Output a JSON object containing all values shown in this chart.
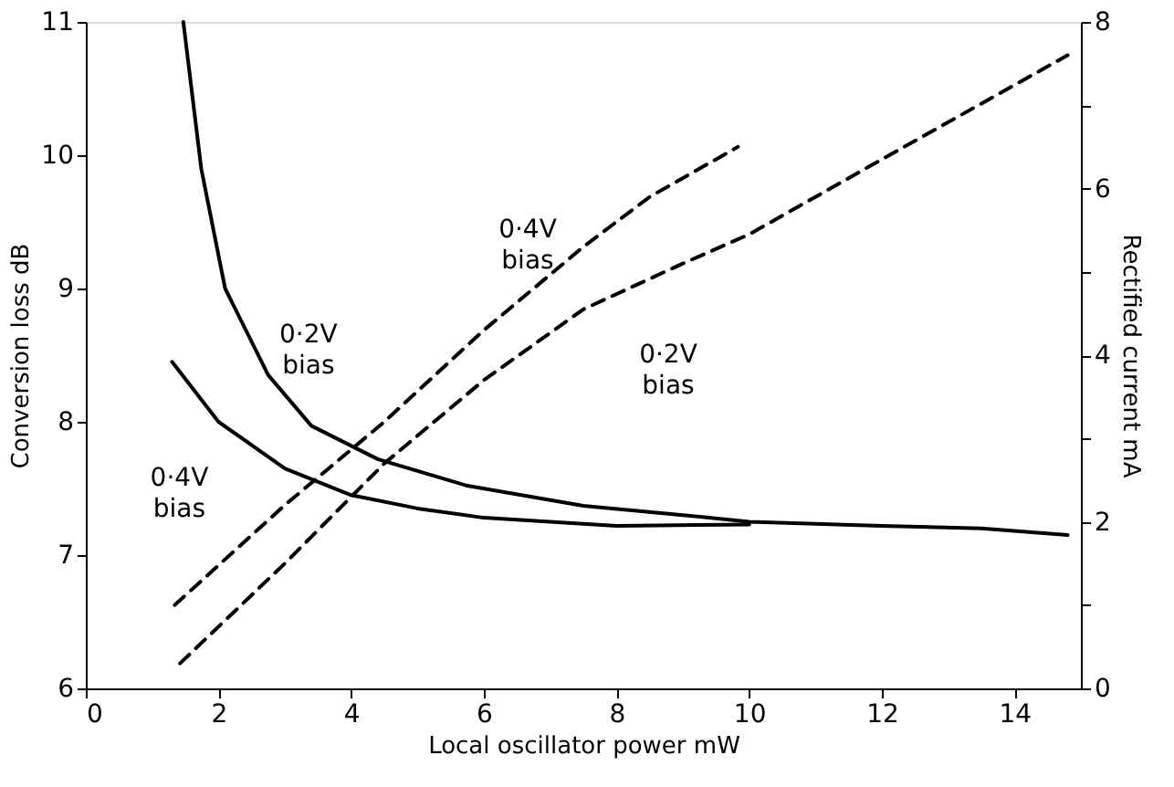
{
  "chart_data": {
    "type": "line",
    "xlabel": "Local oscillator power  mW",
    "ylabel": "Conversion loss  dB",
    "y2label": "Rectified current  mA",
    "xlim": [
      0,
      15
    ],
    "xticks": [
      0,
      2,
      4,
      6,
      8,
      10,
      12,
      14
    ],
    "ylim": [
      6,
      11
    ],
    "yticks": [
      6,
      7,
      8,
      9,
      10,
      11
    ],
    "y2lim": [
      0,
      8
    ],
    "y2ticks": [
      0,
      {
        "value": 1,
        "label": null
      },
      2,
      {
        "value": 3,
        "label": null
      },
      4,
      {
        "value": 5,
        "label": null
      },
      6,
      {
        "value": 7,
        "label": null
      },
      8
    ],
    "grid": false,
    "marker": "none",
    "series": [
      {
        "name": "0·2V bias",
        "color": "#000000",
        "line_style": "solid",
        "x": [
          1.47,
          1.74,
          2.1,
          2.75,
          3.4,
          4.4,
          5.75,
          7.5,
          9,
          10,
          12,
          13.5,
          14.8
        ],
        "values": [
          11,
          9.9,
          9.0,
          8.35,
          7.97,
          7.72,
          7.52,
          7.37,
          7.3,
          7.25,
          7.22,
          7.2,
          7.15
        ]
      },
      {
        "name": "0·4V bias",
        "color": "#000000",
        "line_style": "solid",
        "x": [
          1.3,
          2,
          3,
          4,
          5,
          6,
          8,
          10
        ],
        "values": [
          8.45,
          8.0,
          7.65,
          7.45,
          7.35,
          7.28,
          7.22,
          7.23
        ]
      },
      {
        "name": "0·4V bias",
        "color": "#000000",
        "line_style": "dashed",
        "axis": "y2",
        "x": [
          1.34,
          3,
          4.5,
          6,
          7.5,
          8.5,
          9.83
        ],
        "values": [
          1.0,
          2.2,
          3.2,
          4.3,
          5.3,
          5.9,
          6.5
        ]
      },
      {
        "name": "0·2V bias",
        "color": "#000000",
        "line_style": "dashed",
        "axis": "y2",
        "x": [
          1.42,
          3,
          4.5,
          6,
          7.5,
          9,
          10,
          12,
          14.8
        ],
        "values": [
          0.3,
          1.5,
          2.7,
          3.7,
          4.55,
          5.1,
          5.45,
          6.35,
          7.6
        ]
      }
    ]
  }
}
